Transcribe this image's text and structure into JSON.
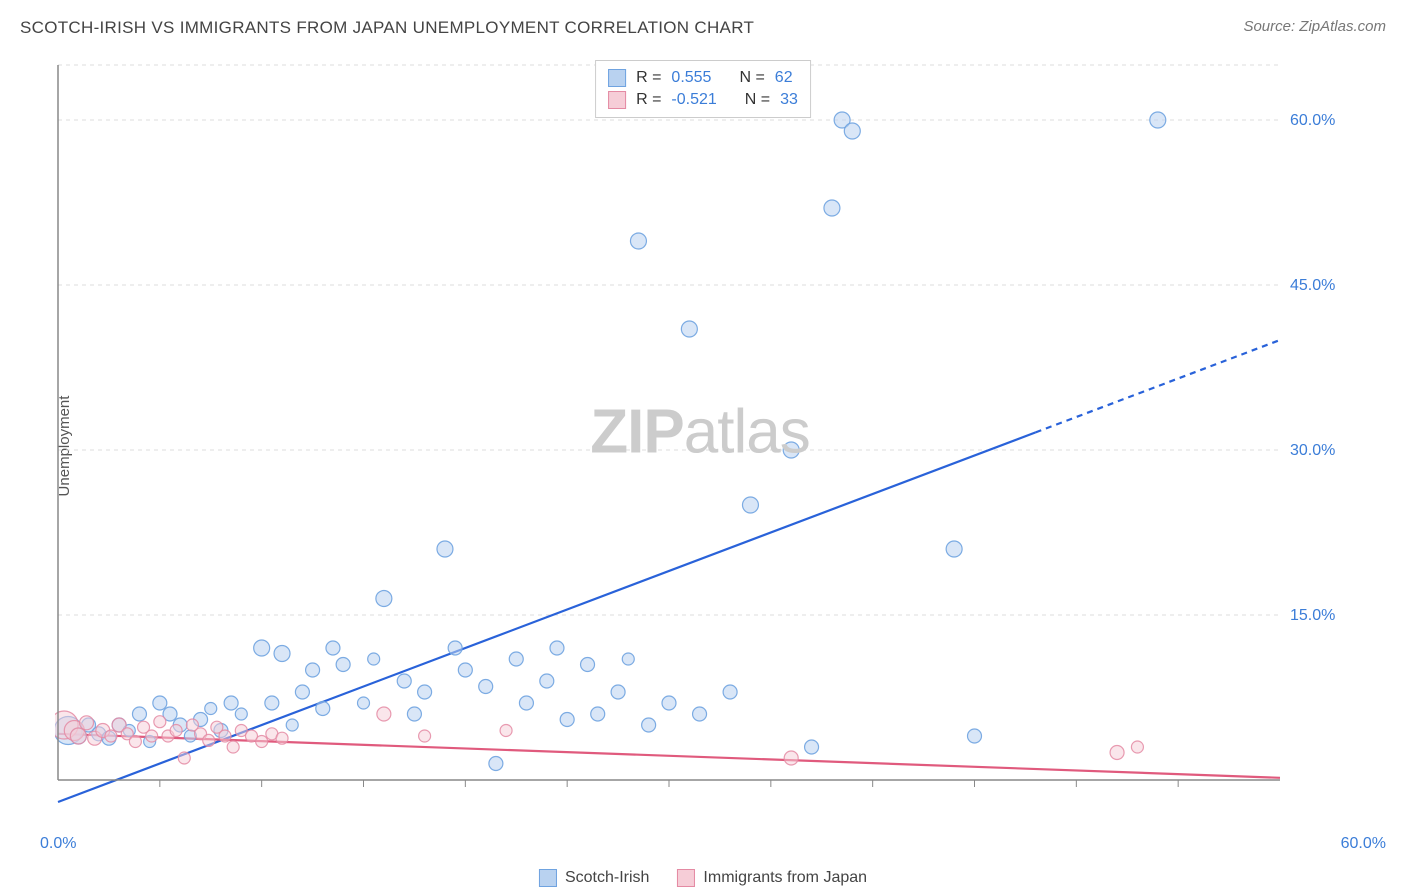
{
  "header": {
    "title": "SCOTCH-IRISH VS IMMIGRANTS FROM JAPAN UNEMPLOYMENT CORRELATION CHART",
    "source": "Source: ZipAtlas.com"
  },
  "watermark": {
    "zip": "ZIP",
    "atlas": "atlas"
  },
  "ylabel": "Unemployment",
  "legend_top": {
    "series": [
      {
        "swatch_fill": "#b9d2f0",
        "swatch_stroke": "#6fa3e0",
        "r_label": "R =",
        "r_value": "0.555",
        "n_label": "N =",
        "n_value": "62"
      },
      {
        "swatch_fill": "#f6cdd7",
        "swatch_stroke": "#e48aa3",
        "r_label": "R =",
        "r_value": "-0.521",
        "n_label": "N =",
        "n_value": "33"
      }
    ]
  },
  "legend_bottom": {
    "items": [
      {
        "swatch_fill": "#b9d2f0",
        "swatch_stroke": "#6fa3e0",
        "label": "Scotch-Irish"
      },
      {
        "swatch_fill": "#f6cdd7",
        "swatch_stroke": "#e48aa3",
        "label": "Immigrants from Japan"
      }
    ]
  },
  "chart": {
    "type": "scatter",
    "background_color": "#ffffff",
    "grid_color": "#dddddd",
    "grid_dash": "4,4",
    "axis_color": "#888888",
    "xlim": [
      0,
      60
    ],
    "ylim": [
      0,
      65
    ],
    "y_ticks": [
      {
        "v": 15,
        "label": "15.0%"
      },
      {
        "v": 30,
        "label": "30.0%"
      },
      {
        "v": 45,
        "label": "45.0%"
      },
      {
        "v": 60,
        "label": "60.0%"
      }
    ],
    "x_end_labels": {
      "min": "0.0%",
      "max": "60.0%"
    },
    "x_tick_positions": [
      5,
      10,
      15,
      20,
      25,
      30,
      35,
      40,
      45,
      50,
      55
    ],
    "tick_color": "#888888",
    "tick_label_color": "#3b7dd8",
    "tick_fontsize": 16,
    "series": [
      {
        "name": "Scotch-Irish",
        "point_fill": "#b9d2f0",
        "point_stroke": "#6fa3e0",
        "point_fill_opacity": 0.55,
        "point_stroke_opacity": 0.9,
        "trend": {
          "color": "#2962d9",
          "width": 2.2,
          "x1": 0,
          "y1": -2,
          "x2": 60,
          "y2": 40,
          "solid_until_x": 48
        },
        "points": [
          {
            "x": 0.5,
            "y": 4.5,
            "r": 14
          },
          {
            "x": 1,
            "y": 4,
            "r": 8
          },
          {
            "x": 1.5,
            "y": 5,
            "r": 7
          },
          {
            "x": 2,
            "y": 4.2,
            "r": 7
          },
          {
            "x": 2.5,
            "y": 3.8,
            "r": 7
          },
          {
            "x": 3,
            "y": 5,
            "r": 7
          },
          {
            "x": 3.5,
            "y": 4.5,
            "r": 6
          },
          {
            "x": 4,
            "y": 6,
            "r": 7
          },
          {
            "x": 4.5,
            "y": 3.5,
            "r": 6
          },
          {
            "x": 5,
            "y": 7,
            "r": 7
          },
          {
            "x": 5.5,
            "y": 6,
            "r": 7
          },
          {
            "x": 6,
            "y": 5,
            "r": 7
          },
          {
            "x": 6.5,
            "y": 4,
            "r": 6
          },
          {
            "x": 7,
            "y": 5.5,
            "r": 7
          },
          {
            "x": 7.5,
            "y": 6.5,
            "r": 6
          },
          {
            "x": 8,
            "y": 4.5,
            "r": 7
          },
          {
            "x": 8.5,
            "y": 7,
            "r": 7
          },
          {
            "x": 9,
            "y": 6,
            "r": 6
          },
          {
            "x": 10,
            "y": 12,
            "r": 8
          },
          {
            "x": 10.5,
            "y": 7,
            "r": 7
          },
          {
            "x": 11,
            "y": 11.5,
            "r": 8
          },
          {
            "x": 11.5,
            "y": 5,
            "r": 6
          },
          {
            "x": 12,
            "y": 8,
            "r": 7
          },
          {
            "x": 12.5,
            "y": 10,
            "r": 7
          },
          {
            "x": 13,
            "y": 6.5,
            "r": 7
          },
          {
            "x": 13.5,
            "y": 12,
            "r": 7
          },
          {
            "x": 14,
            "y": 10.5,
            "r": 7
          },
          {
            "x": 15,
            "y": 7,
            "r": 6
          },
          {
            "x": 15.5,
            "y": 11,
            "r": 6
          },
          {
            "x": 16,
            "y": 16.5,
            "r": 8
          },
          {
            "x": 17,
            "y": 9,
            "r": 7
          },
          {
            "x": 17.5,
            "y": 6,
            "r": 7
          },
          {
            "x": 18,
            "y": 8,
            "r": 7
          },
          {
            "x": 19,
            "y": 21,
            "r": 8
          },
          {
            "x": 19.5,
            "y": 12,
            "r": 7
          },
          {
            "x": 20,
            "y": 10,
            "r": 7
          },
          {
            "x": 21,
            "y": 8.5,
            "r": 7
          },
          {
            "x": 21.5,
            "y": 1.5,
            "r": 7
          },
          {
            "x": 22.5,
            "y": 11,
            "r": 7
          },
          {
            "x": 23,
            "y": 7,
            "r": 7
          },
          {
            "x": 24,
            "y": 9,
            "r": 7
          },
          {
            "x": 24.5,
            "y": 12,
            "r": 7
          },
          {
            "x": 25,
            "y": 5.5,
            "r": 7
          },
          {
            "x": 26,
            "y": 10.5,
            "r": 7
          },
          {
            "x": 26.5,
            "y": 6,
            "r": 7
          },
          {
            "x": 27.5,
            "y": 8,
            "r": 7
          },
          {
            "x": 28,
            "y": 11,
            "r": 6
          },
          {
            "x": 28.5,
            "y": 49,
            "r": 8
          },
          {
            "x": 29,
            "y": 5,
            "r": 7
          },
          {
            "x": 30,
            "y": 7,
            "r": 7
          },
          {
            "x": 31,
            "y": 41,
            "r": 8
          },
          {
            "x": 31.5,
            "y": 6,
            "r": 7
          },
          {
            "x": 33,
            "y": 8,
            "r": 7
          },
          {
            "x": 34,
            "y": 25,
            "r": 8
          },
          {
            "x": 36,
            "y": 30,
            "r": 8
          },
          {
            "x": 37,
            "y": 3,
            "r": 7
          },
          {
            "x": 38,
            "y": 52,
            "r": 8
          },
          {
            "x": 38.5,
            "y": 60,
            "r": 8
          },
          {
            "x": 39,
            "y": 59,
            "r": 8
          },
          {
            "x": 44,
            "y": 21,
            "r": 8
          },
          {
            "x": 45,
            "y": 4,
            "r": 7
          },
          {
            "x": 54,
            "y": 60,
            "r": 8
          }
        ]
      },
      {
        "name": "Immigrants from Japan",
        "point_fill": "#f6cdd7",
        "point_stroke": "#e48aa3",
        "point_fill_opacity": 0.5,
        "point_stroke_opacity": 0.85,
        "trend": {
          "color": "#e05a7d",
          "width": 2.2,
          "x1": 0,
          "y1": 4.2,
          "x2": 60,
          "y2": 0.2,
          "solid_until_x": 60
        },
        "points": [
          {
            "x": 0.3,
            "y": 5,
            "r": 14
          },
          {
            "x": 0.8,
            "y": 4.5,
            "r": 10
          },
          {
            "x": 1,
            "y": 4,
            "r": 8
          },
          {
            "x": 1.4,
            "y": 5.2,
            "r": 7
          },
          {
            "x": 1.8,
            "y": 3.8,
            "r": 7
          },
          {
            "x": 2.2,
            "y": 4.5,
            "r": 7
          },
          {
            "x": 2.6,
            "y": 4,
            "r": 6
          },
          {
            "x": 3,
            "y": 5,
            "r": 7
          },
          {
            "x": 3.4,
            "y": 4.2,
            "r": 6
          },
          {
            "x": 3.8,
            "y": 3.5,
            "r": 6
          },
          {
            "x": 4.2,
            "y": 4.8,
            "r": 6
          },
          {
            "x": 4.6,
            "y": 4,
            "r": 6
          },
          {
            "x": 5,
            "y": 5.3,
            "r": 6
          },
          {
            "x": 5.4,
            "y": 4,
            "r": 6
          },
          {
            "x": 5.8,
            "y": 4.5,
            "r": 6
          },
          {
            "x": 6.2,
            "y": 2,
            "r": 6
          },
          {
            "x": 6.6,
            "y": 5,
            "r": 6
          },
          {
            "x": 7,
            "y": 4.2,
            "r": 6
          },
          {
            "x": 7.4,
            "y": 3.6,
            "r": 6
          },
          {
            "x": 7.8,
            "y": 4.8,
            "r": 6
          },
          {
            "x": 8.2,
            "y": 4,
            "r": 6
          },
          {
            "x": 8.6,
            "y": 3,
            "r": 6
          },
          {
            "x": 9,
            "y": 4.5,
            "r": 6
          },
          {
            "x": 9.5,
            "y": 4,
            "r": 6
          },
          {
            "x": 10,
            "y": 3.5,
            "r": 6
          },
          {
            "x": 10.5,
            "y": 4.2,
            "r": 6
          },
          {
            "x": 11,
            "y": 3.8,
            "r": 6
          },
          {
            "x": 16,
            "y": 6,
            "r": 7
          },
          {
            "x": 18,
            "y": 4,
            "r": 6
          },
          {
            "x": 22,
            "y": 4.5,
            "r": 6
          },
          {
            "x": 36,
            "y": 2,
            "r": 7
          },
          {
            "x": 52,
            "y": 2.5,
            "r": 7
          },
          {
            "x": 53,
            "y": 3,
            "r": 6
          }
        ]
      }
    ]
  }
}
